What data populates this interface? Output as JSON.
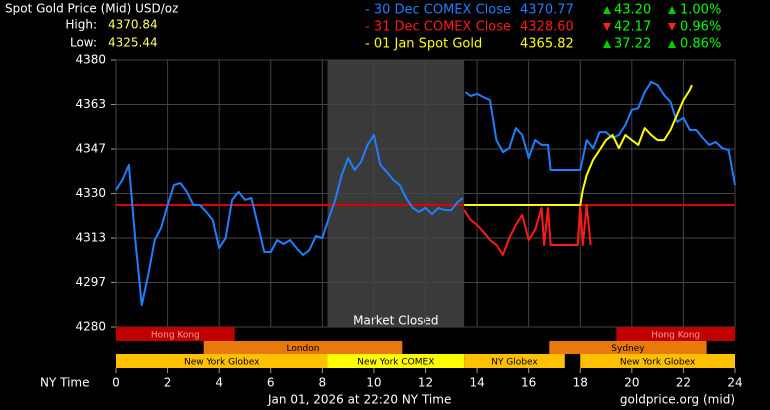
{
  "chart_data": {
    "type": "line",
    "title": "Spot Gold Price (Mid) USD/oz",
    "high_label": "High:",
    "high": "4370.84",
    "low_label": "Low:",
    "low": "4325.44",
    "xlabel": "NY Time",
    "footer": "Jan 01, 2026 at 22:20 NY Time",
    "source": "goldprice.org (mid)",
    "closed_label": "Market Closed",
    "closed_range": [
      8.2,
      13.5
    ],
    "xlim": [
      0,
      24
    ],
    "xticks": [
      0,
      2,
      4,
      6,
      8,
      10,
      12,
      14,
      16,
      18,
      20,
      22,
      24
    ],
    "ylim": [
      4280,
      4380
    ],
    "yticks": [
      4280,
      {
        "value": 4296.67,
        "label": "4297"
      },
      {
        "value": 4313.33,
        "label": "4313"
      },
      4330,
      {
        "value": 4346.67,
        "label": "4347"
      },
      {
        "value": 4363.33,
        "label": "4363"
      },
      4380
    ],
    "grid": true,
    "reference_line": {
      "value": 4325.7,
      "color": "#e00000"
    },
    "series": [
      {
        "name": "- 30 Dec COMEX Close",
        "color": "#1e7fff",
        "price": "4370.77",
        "change": "43.20",
        "change_pct": "1.00%",
        "direction": "up",
        "x": [
          0,
          0.25,
          0.5,
          0.75,
          1,
          1.25,
          1.5,
          1.75,
          2,
          2.25,
          2.5,
          2.75,
          3,
          3.25,
          3.5,
          3.75,
          4,
          4.25,
          4.5,
          4.75,
          5,
          5.25,
          5.5,
          5.75,
          6,
          6.25,
          6.5,
          6.75,
          7,
          7.25,
          7.5,
          7.75,
          8,
          8.25,
          8.5,
          8.75,
          9,
          9.25,
          9.5,
          9.75,
          10,
          10.25,
          10.5,
          10.75,
          11,
          11.25,
          11.5,
          11.75,
          12,
          12.25,
          12.5,
          12.75,
          13,
          13.25,
          13.45,
          13.5,
          13.55,
          13.75,
          14,
          14.25,
          14.5,
          14.75,
          15,
          15.25,
          15.5,
          15.75,
          16,
          16.25,
          16.5,
          16.75,
          16.85,
          17,
          17.5,
          18,
          18.25,
          18.5,
          18.75,
          19,
          19.25,
          19.5,
          19.75,
          20,
          20.25,
          20.5,
          20.75,
          21,
          21.25,
          21.5,
          21.75,
          22,
          22.25,
          22.5,
          22.75,
          23,
          23.25,
          23.5,
          23.75,
          24
        ],
        "values": [
          4331.3,
          4335.1,
          4340.7,
          4312.6,
          4288.2,
          4299.5,
          4312.6,
          4317.1,
          4325.7,
          4333.2,
          4333.9,
          4330.6,
          4325.7,
          4325.7,
          4323.1,
          4320.1,
          4309.6,
          4313.3,
          4327.6,
          4330.6,
          4327.6,
          4328.3,
          4318.2,
          4308.1,
          4308.1,
          4312.6,
          4311.1,
          4312.6,
          4309.6,
          4307.0,
          4308.8,
          4314.1,
          4313.3,
          4320.8,
          4327.6,
          4336.9,
          4343.3,
          4338.8,
          4341.8,
          4348.2,
          4351.9,
          4340.7,
          4338.1,
          4335.1,
          4333.2,
          4328.3,
          4324.6,
          4323.1,
          4324.6,
          4322.3,
          4324.6,
          4323.8,
          4323.8,
          4326.8,
          4328.3,
          null,
          4368.0,
          4366.5,
          4367.3,
          4366.1,
          4365.0,
          4350.0,
          4345.5,
          4347.0,
          4354.5,
          4351.9,
          4343.3,
          4350.0,
          4348.2,
          4348.2,
          4338.8,
          4338.8,
          4338.8,
          4338.8,
          4350.0,
          4347.0,
          4353.0,
          4353.0,
          4350.8,
          4351.9,
          4355.7,
          4361.3,
          4362.0,
          4368.0,
          4371.8,
          4370.6,
          4366.9,
          4364.3,
          4356.8,
          4358.3,
          4353.8,
          4353.8,
          4350.8,
          4348.2,
          4349.3,
          4347.0,
          4346.3,
          4333.2
        ]
      },
      {
        "name": "- 31 Dec COMEX Close",
        "color": "#ff1a1a",
        "price": "4328.60",
        "change": "42.17",
        "change_pct": "0.96%",
        "direction": "down",
        "x": [
          13.5,
          13.75,
          14,
          14.25,
          14.5,
          14.75,
          15,
          15.25,
          15.5,
          15.75,
          16,
          16.25,
          16.5,
          16.6,
          16.75,
          16.85,
          17.5,
          17.9,
          18,
          18.1,
          18.25,
          18.4
        ],
        "values": [
          4323.8,
          4320.1,
          4318.2,
          4315.6,
          4312.6,
          4310.7,
          4307.0,
          4313.3,
          4318.2,
          4322.0,
          4312.6,
          4316.3,
          4324.6,
          4310.7,
          4324.6,
          4310.7,
          4310.7,
          4310.7,
          4325.7,
          4310.7,
          4325.7,
          4310.7
        ]
      },
      {
        "name": "- 01 Jan Spot Gold",
        "color": "#ffff00",
        "price": "4365.82",
        "change": "37.22",
        "change_pct": "0.86%",
        "direction": "up",
        "x": [
          13.5,
          18,
          18.1,
          18.25,
          18.5,
          18.75,
          19,
          19.25,
          19.5,
          19.75,
          20,
          20.25,
          20.5,
          20.75,
          21,
          21.25,
          21.5,
          21.75,
          22,
          22.25,
          22.33
        ],
        "values": [
          4325.7,
          4325.7,
          4331.3,
          4336.9,
          4342.6,
          4346.3,
          4350.0,
          4351.9,
          4347.0,
          4351.9,
          4350.0,
          4348.2,
          4354.5,
          4351.9,
          4350.0,
          4350.0,
          4353.8,
          4359.4,
          4365.0,
          4368.8,
          4370.6
        ]
      }
    ],
    "sessions": [
      {
        "label": "Hong Kong",
        "start": 0,
        "end": 4.6,
        "row": 0,
        "color": "#c00000"
      },
      {
        "label": "Hong Kong",
        "start": 19.4,
        "end": 24,
        "row": 0,
        "color": "#c00000"
      },
      {
        "label": "London",
        "start": 3.4,
        "end": 11.1,
        "row": 1,
        "color": "#e8790c"
      },
      {
        "label": "Sydney",
        "start": 16.8,
        "end": 22.9,
        "row": 1,
        "color": "#e8790c"
      },
      {
        "label": "New York Globex",
        "start": 0,
        "end": 8.2,
        "row": 2,
        "color": "#ffc000"
      },
      {
        "label": "New York COMEX",
        "start": 8.2,
        "end": 13.5,
        "row": 2,
        "color": "#ffff00"
      },
      {
        "label": "NY Globex",
        "start": 13.5,
        "end": 17.4,
        "row": 2,
        "color": "#ffc000"
      },
      {
        "label": "New York Globex",
        "start": 18,
        "end": 24,
        "row": 2,
        "color": "#ffc000"
      }
    ]
  }
}
